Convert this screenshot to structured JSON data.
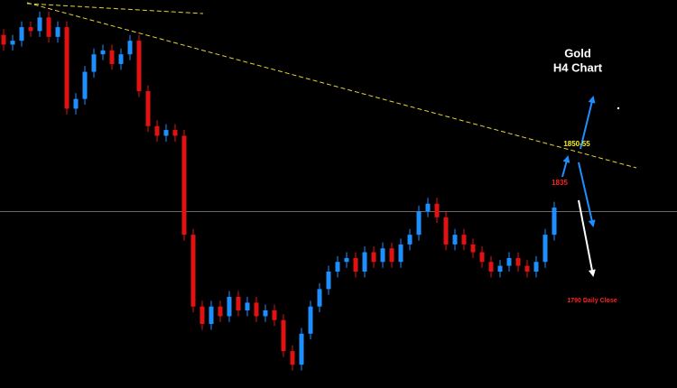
{
  "chart_data": {
    "type": "candlestick",
    "title": "Gold",
    "subtitle": "H4 Chart",
    "annotations": [
      "1850-55",
      "1835",
      "1790 Daily Close"
    ],
    "ylim": [
      1700,
      1900
    ],
    "up_color": "#1e8fff",
    "down_color": "#e31212",
    "price_line": 1791,
    "open": [
      1882,
      1877,
      1879,
      1886,
      1884,
      1891,
      1881,
      1886,
      1844,
      1849,
      1863,
      1872,
      1874,
      1867,
      1872,
      1879,
      1853,
      1835,
      1830,
      1833,
      1830,
      1779,
      1742,
      1733,
      1742,
      1737,
      1747,
      1740,
      1744,
      1737,
      1740,
      1735,
      1719,
      1712,
      1728,
      1742,
      1751,
      1760,
      1765,
      1767,
      1760,
      1770,
      1765,
      1772,
      1765,
      1774,
      1779,
      1791,
      1795,
      1788,
      1774,
      1779,
      1774,
      1770,
      1765,
      1760,
      1763,
      1767,
      1763,
      1760,
      1765,
      1779
    ],
    "high": [
      1885,
      1882,
      1889,
      1889,
      1894,
      1894,
      1889,
      1889,
      1852,
      1866,
      1875,
      1877,
      1877,
      1875,
      1882,
      1882,
      1856,
      1838,
      1836,
      1836,
      1833,
      1782,
      1745,
      1745,
      1745,
      1750,
      1750,
      1747,
      1747,
      1743,
      1743,
      1738,
      1722,
      1731,
      1745,
      1754,
      1763,
      1768,
      1770,
      1770,
      1773,
      1773,
      1775,
      1775,
      1777,
      1782,
      1794,
      1798,
      1798,
      1791,
      1782,
      1782,
      1777,
      1773,
      1768,
      1766,
      1770,
      1770,
      1766,
      1768,
      1782,
      1796
    ],
    "low": [
      1874,
      1874,
      1876,
      1881,
      1881,
      1878,
      1878,
      1841,
      1841,
      1846,
      1860,
      1869,
      1864,
      1864,
      1869,
      1850,
      1832,
      1827,
      1827,
      1827,
      1776,
      1739,
      1730,
      1730,
      1734,
      1734,
      1737,
      1737,
      1734,
      1734,
      1732,
      1716,
      1709,
      1709,
      1725,
      1739,
      1748,
      1757,
      1762,
      1757,
      1757,
      1762,
      1762,
      1762,
      1762,
      1771,
      1776,
      1788,
      1785,
      1771,
      1771,
      1771,
      1767,
      1762,
      1757,
      1757,
      1760,
      1760,
      1757,
      1757,
      1762,
      1776
    ],
    "close": [
      1877,
      1879,
      1886,
      1884,
      1891,
      1881,
      1886,
      1844,
      1849,
      1863,
      1872,
      1874,
      1867,
      1872,
      1879,
      1853,
      1835,
      1830,
      1833,
      1830,
      1779,
      1742,
      1733,
      1742,
      1737,
      1747,
      1740,
      1744,
      1737,
      1740,
      1735,
      1719,
      1712,
      1728,
      1742,
      1751,
      1760,
      1765,
      1767,
      1760,
      1770,
      1765,
      1772,
      1765,
      1774,
      1779,
      1791,
      1795,
      1788,
      1774,
      1779,
      1774,
      1770,
      1765,
      1760,
      1763,
      1767,
      1763,
      1760,
      1765,
      1779,
      1793
    ]
  }
}
